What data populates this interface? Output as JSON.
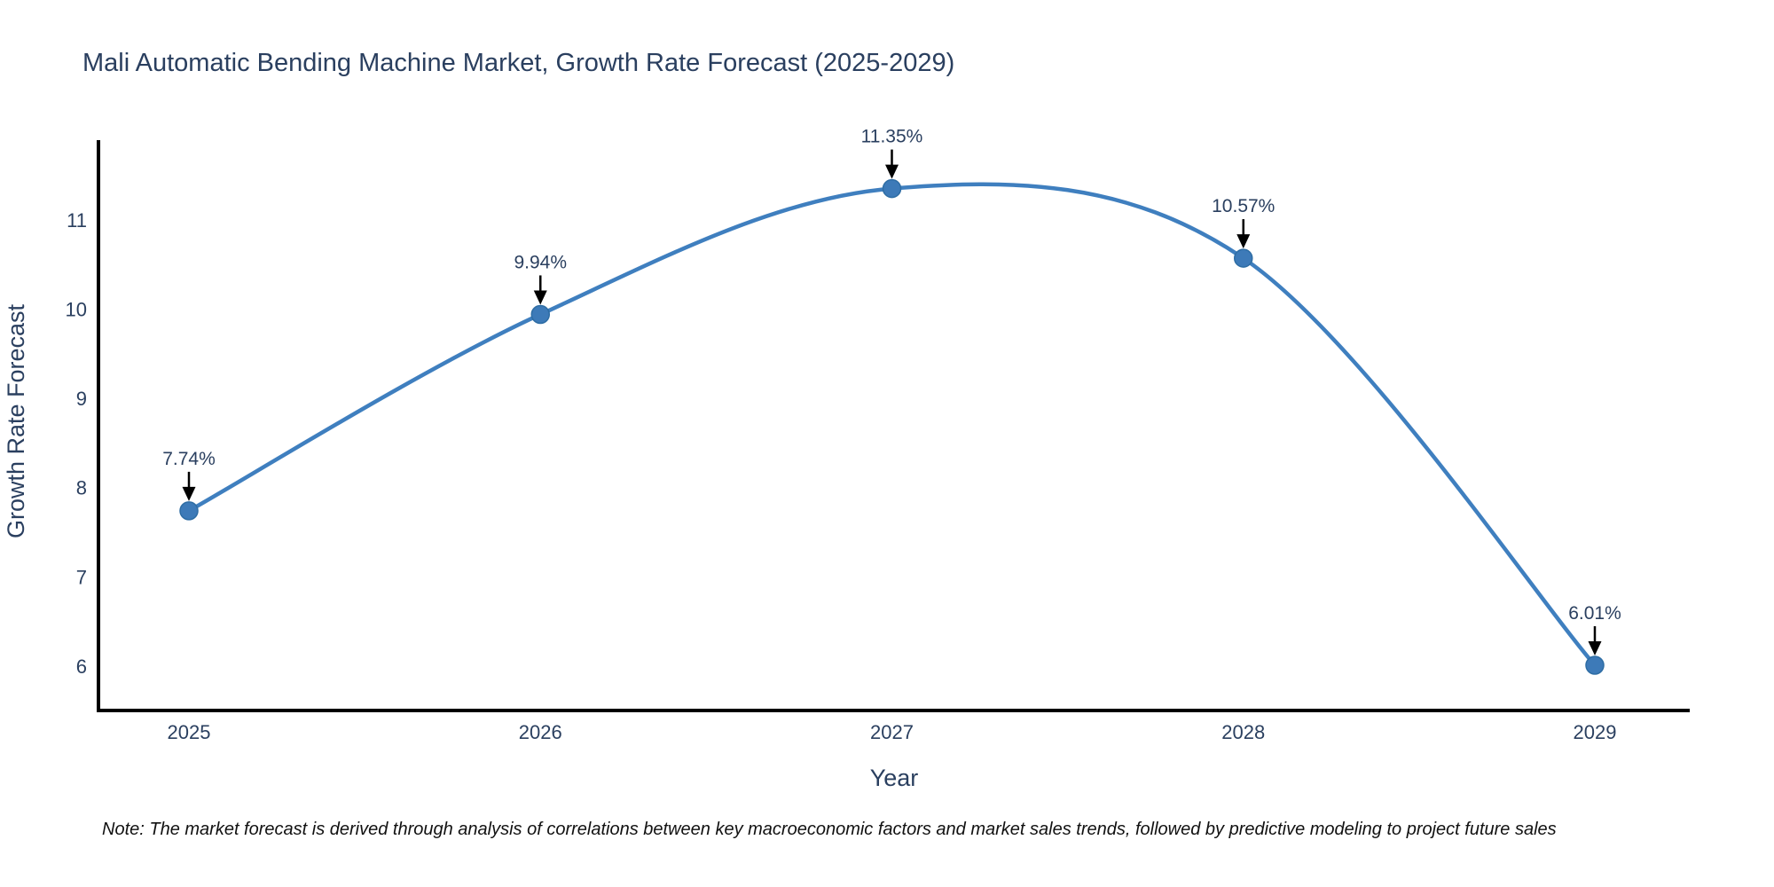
{
  "note": "Note: The market forecast is derived through analysis of correlations between key macroeconomic factors and market sales trends, followed by predictive modeling to project future sales",
  "chart_data": {
    "type": "line",
    "title": "Mali Automatic Bending Machine Market, Growth Rate Forecast (2025-2029)",
    "xlabel": "Year",
    "ylabel": "Growth Rate Forecast",
    "x": [
      2025,
      2026,
      2027,
      2028,
      2029
    ],
    "y": [
      7.74,
      9.94,
      11.35,
      10.57,
      6.01
    ],
    "point_labels": [
      "7.74%",
      "9.94%",
      "11.35%",
      "10.57%",
      "6.01%"
    ],
    "line_shape": "spline",
    "markers": true,
    "grid": false,
    "legend": "none",
    "yticks": [
      6,
      7,
      8,
      9,
      10,
      11
    ],
    "ylim": [
      5.5,
      11.9
    ],
    "xlim": [
      2024.74,
      2029.27
    ],
    "colors": {
      "line": "#3f7fbf",
      "marker": "#3d7ab8",
      "marker_edge": "#2e6da4",
      "axis": "#000000",
      "text": "#2a3f5f",
      "annotation_arrow": "#000000",
      "note_text": "#111111",
      "background": "#ffffff"
    }
  }
}
